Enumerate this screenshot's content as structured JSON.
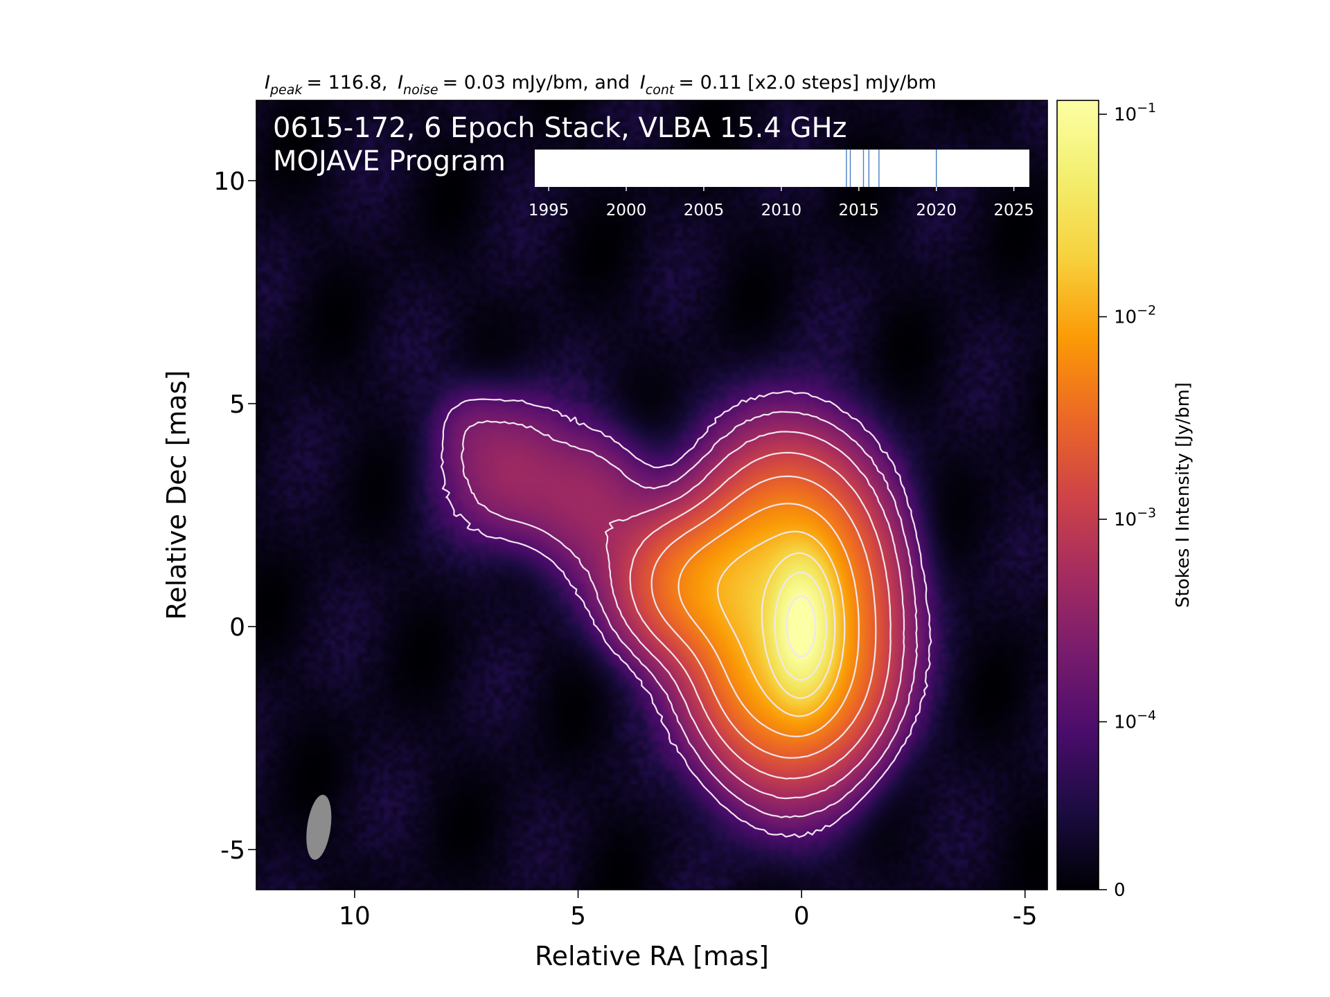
{
  "chart_data": {
    "type": "heatmap",
    "header": {
      "peak_symbol": "I",
      "peak_sub": "peak",
      "peak_value": "= 116.8,",
      "noise_symbol": "I",
      "noise_sub": "noise",
      "noise_value": "= 0.03 mJy/bm, and",
      "cont_symbol": "I",
      "cont_sub": "cont",
      "cont_value": "= 0.11 [x2.0 steps] mJy/bm"
    },
    "title_line1": "0615-172, 6 Epoch Stack, VLBA 15.4 GHz",
    "title_line2": "MOJAVE Program",
    "xlabel": "Relative RA [mas]",
    "ylabel": "Relative Dec [mas]",
    "xlim": [
      12.2,
      -5.5
    ],
    "ylim": [
      -5.9,
      11.8
    ],
    "x_ticks": [
      {
        "value": 10,
        "label": "10"
      },
      {
        "value": 5,
        "label": "5"
      },
      {
        "value": 0,
        "label": "0"
      },
      {
        "value": -5,
        "label": "-5"
      }
    ],
    "y_ticks": [
      {
        "value": 10,
        "label": "10"
      },
      {
        "value": 5,
        "label": "5"
      },
      {
        "value": 0,
        "label": "0"
      },
      {
        "value": -5,
        "label": "-5"
      }
    ],
    "colorbar": {
      "label": "Stokes I Intensity [Jy/bm]",
      "scale": "log",
      "colormap": "inferno",
      "ticks": [
        {
          "value": 0.1,
          "base": "10",
          "exp": "−1"
        },
        {
          "value": 0.01,
          "base": "10",
          "exp": "−2"
        },
        {
          "value": 0.001,
          "base": "10",
          "exp": "−3"
        },
        {
          "value": 0.0001,
          "base": "10",
          "exp": "−4"
        },
        {
          "value": 0,
          "base": "0",
          "exp": ""
        }
      ]
    },
    "epoch_timeline": {
      "xlim": [
        1994.1,
        2026
      ],
      "ticks": [
        {
          "value": 1995,
          "label": "1995"
        },
        {
          "value": 2000,
          "label": "2000"
        },
        {
          "value": 2005,
          "label": "2005"
        },
        {
          "value": 2010,
          "label": "2010"
        },
        {
          "value": 2015,
          "label": "2015"
        },
        {
          "value": 2020,
          "label": "2020"
        },
        {
          "value": 2025,
          "label": "2025"
        }
      ],
      "epochs": [
        2014.2,
        2014.45,
        2015.3,
        2015.65,
        2016.3,
        2020.0
      ],
      "epoch_color": "#4a7fc1"
    },
    "beam": {
      "x": 10.8,
      "y": -4.5,
      "major_mas": 1.4,
      "minor_mas": 0.5,
      "color": "#8c8c8c"
    },
    "source": {
      "core": {
        "x": 0,
        "y": 0
      },
      "components": [
        {
          "x": 0.0,
          "y": 0.0,
          "sx": 0.35,
          "sy": 0.75,
          "amp": 1.0
        },
        {
          "x": 0.3,
          "y": 0.3,
          "sx": 1.0,
          "sy": 1.6,
          "amp": 0.16
        },
        {
          "x": 1.8,
          "y": 0.9,
          "sx": 1.0,
          "sy": 0.8,
          "amp": 0.05
        },
        {
          "x": 0.0,
          "y": -1.2,
          "sx": 0.9,
          "sy": 0.9,
          "amp": 0.03
        },
        {
          "x": 2.6,
          "y": 1.0,
          "sx": 0.9,
          "sy": 1.0,
          "amp": 0.012
        },
        {
          "x": 4.7,
          "y": 2.7,
          "sx": 0.8,
          "sy": 1.0,
          "amp": 0.0035
        },
        {
          "x": 6.6,
          "y": 3.7,
          "sx": 0.8,
          "sy": 0.9,
          "amp": 0.004
        },
        {
          "x": 5.6,
          "y": 3.0,
          "sx": 1.2,
          "sy": 0.8,
          "amp": 0.0025
        },
        {
          "x": 7.5,
          "y": 4.5,
          "sx": 0.5,
          "sy": 0.6,
          "amp": 0.0012
        },
        {
          "x": 3.7,
          "y": 1.8,
          "sx": 0.8,
          "sy": 0.7,
          "amp": 0.0012
        }
      ],
      "noise_amp": 6e-05,
      "contour_base": 0.00011,
      "contour_step": 2.0,
      "peak": 0.1168
    }
  }
}
